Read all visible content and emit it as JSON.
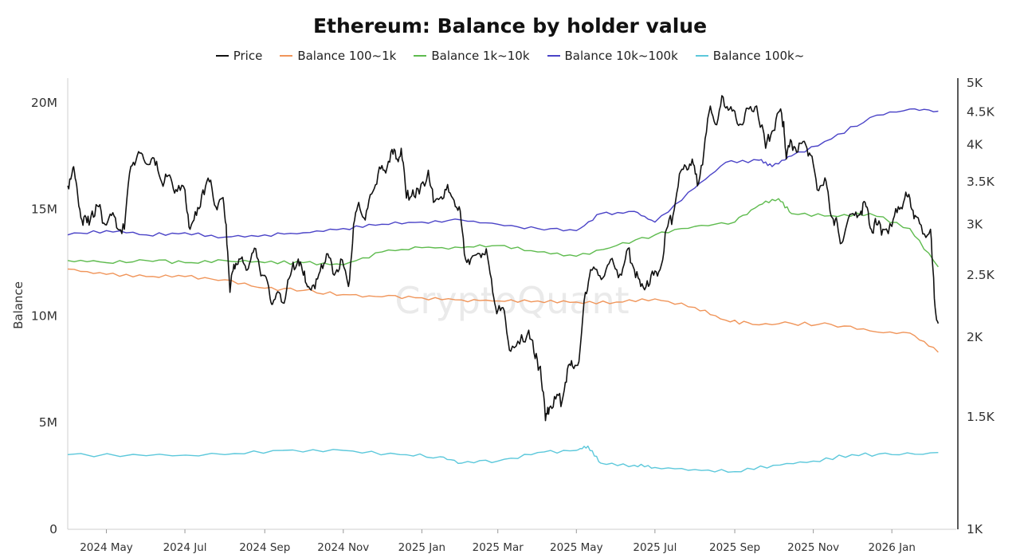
{
  "chart_data": {
    "type": "line",
    "title": "Ethereum: Balance by holder value",
    "ylabel": "Balance",
    "y2label": "",
    "ylim": [
      0,
      21000000
    ],
    "y2lim": [
      1000,
      5000
    ],
    "y2scale": "log",
    "grid": false,
    "legend_position": "top-center",
    "watermark": "CryptoQuant",
    "yticks": [
      {
        "value": 0,
        "label": "0"
      },
      {
        "value": 5000000,
        "label": "5M"
      },
      {
        "value": 10000000,
        "label": "10M"
      },
      {
        "value": 15000000,
        "label": "15M"
      },
      {
        "value": 20000000,
        "label": "20M"
      }
    ],
    "y2ticks": [
      {
        "value": 1000,
        "label": "1K"
      },
      {
        "value": 1500,
        "label": "1.5K"
      },
      {
        "value": 2000,
        "label": "2K"
      },
      {
        "value": 2500,
        "label": "2.5K"
      },
      {
        "value": 3000,
        "label": "3K"
      },
      {
        "value": 3500,
        "label": "3.5K"
      },
      {
        "value": 4000,
        "label": "4K"
      },
      {
        "value": 4500,
        "label": "4.5K"
      },
      {
        "value": 5000,
        "label": "5K"
      }
    ],
    "xlim": [
      "2024-04-01",
      "2026-02-20"
    ],
    "xticks": [
      {
        "value": "2024-05-01",
        "label": "2024 May"
      },
      {
        "value": "2024-07-01",
        "label": "2024 Jul"
      },
      {
        "value": "2024-09-01",
        "label": "2024 Sep"
      },
      {
        "value": "2024-11-01",
        "label": "2024 Nov"
      },
      {
        "value": "2025-01-01",
        "label": "2025 Jan"
      },
      {
        "value": "2025-03-01",
        "label": "2025 Mar"
      },
      {
        "value": "2025-05-01",
        "label": "2025 May"
      },
      {
        "value": "2025-07-01",
        "label": "2025 Jul"
      },
      {
        "value": "2025-09-01",
        "label": "2025 Sep"
      },
      {
        "value": "2025-11-01",
        "label": "2025 Nov"
      },
      {
        "value": "2026-01-01",
        "label": "2026 Jan"
      }
    ],
    "series": [
      {
        "name": "Price",
        "axis": "right",
        "color": "#111111",
        "points": [
          [
            "2024-04-01",
            3450
          ],
          [
            "2024-04-05",
            3680
          ],
          [
            "2024-04-08",
            3450
          ],
          [
            "2024-04-12",
            3050
          ],
          [
            "2024-04-16",
            3020
          ],
          [
            "2024-04-20",
            3150
          ],
          [
            "2024-04-25",
            3200
          ],
          [
            "2024-04-30",
            3000
          ],
          [
            "2024-05-05",
            3100
          ],
          [
            "2024-05-10",
            2950
          ],
          [
            "2024-05-15",
            2950
          ],
          [
            "2024-05-20",
            3700
          ],
          [
            "2024-05-25",
            3850
          ],
          [
            "2024-05-30",
            3800
          ],
          [
            "2024-06-05",
            3800
          ],
          [
            "2024-06-10",
            3650
          ],
          [
            "2024-06-15",
            3500
          ],
          [
            "2024-06-20",
            3550
          ],
          [
            "2024-06-25",
            3380
          ],
          [
            "2024-07-01",
            3400
          ],
          [
            "2024-07-05",
            2950
          ],
          [
            "2024-07-10",
            3100
          ],
          [
            "2024-07-15",
            3400
          ],
          [
            "2024-07-20",
            3500
          ],
          [
            "2024-07-25",
            3200
          ],
          [
            "2024-07-30",
            3300
          ],
          [
            "2024-08-02",
            3000
          ],
          [
            "2024-08-05",
            2350
          ],
          [
            "2024-08-08",
            2600
          ],
          [
            "2024-08-12",
            2650
          ],
          [
            "2024-08-16",
            2600
          ],
          [
            "2024-08-20",
            2600
          ],
          [
            "2024-08-25",
            2750
          ],
          [
            "2024-08-30",
            2500
          ],
          [
            "2024-09-04",
            2400
          ],
          [
            "2024-09-07",
            2250
          ],
          [
            "2024-09-12",
            2350
          ],
          [
            "2024-09-17",
            2300
          ],
          [
            "2024-09-22",
            2550
          ],
          [
            "2024-09-27",
            2650
          ],
          [
            "2024-10-01",
            2500
          ],
          [
            "2024-10-05",
            2400
          ],
          [
            "2024-10-10",
            2380
          ],
          [
            "2024-10-15",
            2600
          ],
          [
            "2024-10-20",
            2700
          ],
          [
            "2024-10-25",
            2500
          ],
          [
            "2024-10-30",
            2650
          ],
          [
            "2024-11-05",
            2400
          ],
          [
            "2024-11-09",
            3000
          ],
          [
            "2024-11-13",
            3250
          ],
          [
            "2024-11-18",
            3050
          ],
          [
            "2024-11-23",
            3350
          ],
          [
            "2024-11-28",
            3600
          ],
          [
            "2024-12-03",
            3650
          ],
          [
            "2024-12-08",
            3900
          ],
          [
            "2024-12-12",
            3800
          ],
          [
            "2024-12-16",
            3950
          ],
          [
            "2024-12-20",
            3300
          ],
          [
            "2024-12-25",
            3400
          ],
          [
            "2024-12-30",
            3350
          ],
          [
            "2025-01-06",
            3650
          ],
          [
            "2025-01-10",
            3250
          ],
          [
            "2025-01-15",
            3300
          ],
          [
            "2025-01-20",
            3400
          ],
          [
            "2025-01-25",
            3300
          ],
          [
            "2025-01-30",
            3200
          ],
          [
            "2025-02-03",
            2700
          ],
          [
            "2025-02-08",
            2650
          ],
          [
            "2025-02-15",
            2700
          ],
          [
            "2025-02-20",
            2750
          ],
          [
            "2025-02-25",
            2350
          ],
          [
            "2025-03-01",
            2200
          ],
          [
            "2025-03-06",
            2200
          ],
          [
            "2025-03-11",
            1900
          ],
          [
            "2025-03-18",
            1950
          ],
          [
            "2025-03-25",
            2050
          ],
          [
            "2025-03-30",
            1850
          ],
          [
            "2025-04-03",
            1800
          ],
          [
            "2025-04-07",
            1480
          ],
          [
            "2025-04-10",
            1550
          ],
          [
            "2025-04-15",
            1600
          ],
          [
            "2025-04-20",
            1590
          ],
          [
            "2025-04-24",
            1780
          ],
          [
            "2025-04-28",
            1800
          ],
          [
            "2025-05-03",
            1830
          ],
          [
            "2025-05-08",
            2350
          ],
          [
            "2025-05-12",
            2550
          ],
          [
            "2025-05-18",
            2500
          ],
          [
            "2025-05-24",
            2550
          ],
          [
            "2025-05-30",
            2600
          ],
          [
            "2025-06-05",
            2500
          ],
          [
            "2025-06-10",
            2750
          ],
          [
            "2025-06-15",
            2550
          ],
          [
            "2025-06-20",
            2400
          ],
          [
            "2025-06-25",
            2450
          ],
          [
            "2025-06-30",
            2500
          ],
          [
            "2025-07-05",
            2550
          ],
          [
            "2025-07-10",
            2950
          ],
          [
            "2025-07-15",
            3100
          ],
          [
            "2025-07-20",
            3600
          ],
          [
            "2025-07-25",
            3700
          ],
          [
            "2025-07-30",
            3800
          ],
          [
            "2025-08-03",
            3450
          ],
          [
            "2025-08-08",
            3900
          ],
          [
            "2025-08-13",
            4600
          ],
          [
            "2025-08-18",
            4300
          ],
          [
            "2025-08-23",
            4750
          ],
          [
            "2025-08-28",
            4550
          ],
          [
            "2025-09-02",
            4400
          ],
          [
            "2025-09-07",
            4300
          ],
          [
            "2025-09-12",
            4550
          ],
          [
            "2025-09-18",
            4600
          ],
          [
            "2025-09-25",
            3950
          ],
          [
            "2025-09-30",
            4200
          ],
          [
            "2025-10-05",
            4500
          ],
          [
            "2025-10-09",
            4350
          ],
          [
            "2025-10-11",
            3800
          ],
          [
            "2025-10-15",
            4050
          ],
          [
            "2025-10-20",
            3900
          ],
          [
            "2025-10-25",
            4050
          ],
          [
            "2025-10-30",
            3850
          ],
          [
            "2025-11-04",
            3400
          ],
          [
            "2025-11-10",
            3550
          ],
          [
            "2025-11-14",
            3150
          ],
          [
            "2025-11-18",
            3050
          ],
          [
            "2025-11-22",
            2800
          ],
          [
            "2025-11-27",
            3000
          ],
          [
            "2025-12-03",
            3100
          ],
          [
            "2025-12-08",
            3150
          ],
          [
            "2025-12-12",
            3200
          ],
          [
            "2025-12-16",
            2950
          ],
          [
            "2025-12-20",
            3000
          ],
          [
            "2025-12-25",
            2950
          ],
          [
            "2026-01-01",
            2980
          ],
          [
            "2026-01-06",
            3200
          ],
          [
            "2026-01-11",
            3300
          ],
          [
            "2026-01-15",
            3300
          ],
          [
            "2026-01-19",
            3100
          ],
          [
            "2026-01-25",
            2900
          ],
          [
            "2026-01-31",
            2950
          ],
          [
            "2026-02-03",
            2300
          ],
          [
            "2026-02-06",
            2100
          ]
        ]
      },
      {
        "name": "Balance 100~1k",
        "axis": "left",
        "color": "#f0955a",
        "points": [
          [
            "2024-04-01",
            12200000
          ],
          [
            "2024-05-01",
            11950000
          ],
          [
            "2024-06-01",
            11850000
          ],
          [
            "2024-07-01",
            11850000
          ],
          [
            "2024-08-01",
            11700000
          ],
          [
            "2024-09-01",
            11300000
          ],
          [
            "2024-10-01",
            11200000
          ],
          [
            "2024-11-01",
            11000000
          ],
          [
            "2024-12-01",
            10900000
          ],
          [
            "2025-01-01",
            10850000
          ],
          [
            "2025-02-01",
            10750000
          ],
          [
            "2025-03-01",
            10700000
          ],
          [
            "2025-04-01",
            10700000
          ],
          [
            "2025-05-01",
            10650000
          ],
          [
            "2025-06-01",
            10650000
          ],
          [
            "2025-07-01",
            10800000
          ],
          [
            "2025-08-01",
            10400000
          ],
          [
            "2025-08-25",
            9800000
          ],
          [
            "2025-09-15",
            9600000
          ],
          [
            "2025-10-15",
            9650000
          ],
          [
            "2025-11-15",
            9600000
          ],
          [
            "2025-12-15",
            9300000
          ],
          [
            "2026-01-15",
            9200000
          ],
          [
            "2026-02-06",
            8300000
          ]
        ]
      },
      {
        "name": "Balance 1k~10k",
        "axis": "left",
        "color": "#5ebb4e",
        "points": [
          [
            "2024-04-01",
            12600000
          ],
          [
            "2024-05-01",
            12500000
          ],
          [
            "2024-06-01",
            12600000
          ],
          [
            "2024-07-01",
            12500000
          ],
          [
            "2024-08-01",
            12600000
          ],
          [
            "2024-09-01",
            12500000
          ],
          [
            "2024-10-01",
            12500000
          ],
          [
            "2024-11-01",
            12400000
          ],
          [
            "2024-12-01",
            13000000
          ],
          [
            "2025-01-01",
            13200000
          ],
          [
            "2025-02-01",
            13200000
          ],
          [
            "2025-03-01",
            13300000
          ],
          [
            "2025-04-01",
            13000000
          ],
          [
            "2025-05-01",
            12800000
          ],
          [
            "2025-06-01",
            13300000
          ],
          [
            "2025-07-01",
            13800000
          ],
          [
            "2025-08-01",
            14200000
          ],
          [
            "2025-09-01",
            14400000
          ],
          [
            "2025-09-20",
            15200000
          ],
          [
            "2025-10-05",
            15500000
          ],
          [
            "2025-10-15",
            14800000
          ],
          [
            "2025-11-15",
            14700000
          ],
          [
            "2025-12-15",
            14800000
          ],
          [
            "2026-01-15",
            14100000
          ],
          [
            "2026-02-06",
            12300000
          ]
        ]
      },
      {
        "name": "Balance 10k~100k",
        "axis": "left",
        "color": "#4a43c7",
        "points": [
          [
            "2024-04-01",
            13800000
          ],
          [
            "2024-05-01",
            14000000
          ],
          [
            "2024-06-01",
            13800000
          ],
          [
            "2024-07-01",
            13900000
          ],
          [
            "2024-08-01",
            13700000
          ],
          [
            "2024-09-01",
            13800000
          ],
          [
            "2024-10-01",
            13900000
          ],
          [
            "2024-11-01",
            14100000
          ],
          [
            "2024-12-01",
            14300000
          ],
          [
            "2025-01-01",
            14400000
          ],
          [
            "2025-02-01",
            14500000
          ],
          [
            "2025-03-01",
            14300000
          ],
          [
            "2025-04-01",
            14100000
          ],
          [
            "2025-05-01",
            14000000
          ],
          [
            "2025-05-20",
            14800000
          ],
          [
            "2025-06-15",
            14900000
          ],
          [
            "2025-07-01",
            14400000
          ],
          [
            "2025-08-01",
            16000000
          ],
          [
            "2025-08-25",
            17200000
          ],
          [
            "2025-09-20",
            17300000
          ],
          [
            "2025-09-30",
            17000000
          ],
          [
            "2025-10-15",
            17500000
          ],
          [
            "2025-11-15",
            18300000
          ],
          [
            "2025-12-15",
            19300000
          ],
          [
            "2026-01-15",
            19700000
          ],
          [
            "2026-02-06",
            19600000
          ]
        ]
      },
      {
        "name": "Balance 100k~",
        "axis": "left",
        "color": "#5cc8db",
        "points": [
          [
            "2024-04-01",
            3500000
          ],
          [
            "2024-06-01",
            3450000
          ],
          [
            "2024-08-01",
            3500000
          ],
          [
            "2024-09-15",
            3700000
          ],
          [
            "2024-11-01",
            3700000
          ],
          [
            "2024-12-15",
            3500000
          ],
          [
            "2025-01-15",
            3400000
          ],
          [
            "2025-02-01",
            3100000
          ],
          [
            "2025-03-01",
            3200000
          ],
          [
            "2025-04-01",
            3600000
          ],
          [
            "2025-05-01",
            3700000
          ],
          [
            "2025-05-10",
            3900000
          ],
          [
            "2025-05-20",
            3100000
          ],
          [
            "2025-06-15",
            3000000
          ],
          [
            "2025-07-01",
            2900000
          ],
          [
            "2025-08-01",
            2800000
          ],
          [
            "2025-09-01",
            2700000
          ],
          [
            "2025-10-01",
            3000000
          ],
          [
            "2025-11-01",
            3200000
          ],
          [
            "2025-12-01",
            3500000
          ],
          [
            "2026-01-01",
            3500000
          ],
          [
            "2026-02-06",
            3600000
          ]
        ]
      }
    ]
  }
}
